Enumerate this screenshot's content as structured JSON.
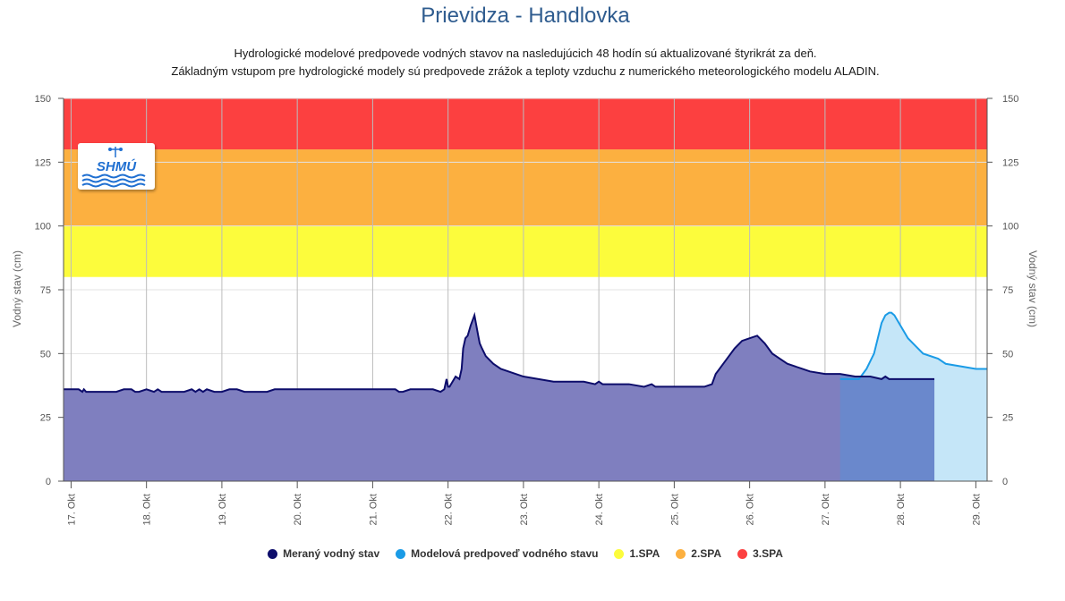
{
  "title": "Prievidza - Handlovka",
  "subtitle_lines": [
    "Hydrologické modelové predpovede vodných stavov na nasledujúcich 48 hodín sú aktualizované štyrikrát za deň.",
    "Základným vstupom pre hydrologické modely sú predpovede zrážok a teploty vzduchu z numerického meteorologického modelu ALADIN."
  ],
  "logo_text": "SHMÚ",
  "colors": {
    "measured_line": "#0d0d6b",
    "measured_fill": "#7f7fbf",
    "forecast_line": "#1a9be6",
    "forecast_fill": "#c5e6f8",
    "overlap_fill": "#6a88cc",
    "spa1": "#fcfc3c",
    "spa2": "#fcb040",
    "spa3": "#fc4040",
    "title": "#2f5c8f"
  },
  "legend": [
    {
      "label": "Meraný vodný stav",
      "color": "#0d0d6b"
    },
    {
      "label": "Modelová predpoveď vodného stavu",
      "color": "#1a9be6"
    },
    {
      "label": "1.SPA",
      "color": "#fcfc3c"
    },
    {
      "label": "2.SPA",
      "color": "#fcb040"
    },
    {
      "label": "3.SPA",
      "color": "#fc4040"
    }
  ],
  "chart_data": {
    "type": "area",
    "title": "Prievidza - Handlovka",
    "ylabel": "Vodný stav (cm)",
    "ylabel_right": "Vodný stav (cm)",
    "xlabel": "",
    "ylim": [
      0,
      150
    ],
    "yticks": [
      0,
      25,
      50,
      75,
      100,
      125,
      150
    ],
    "xlim": [
      -0.1,
      12.15
    ],
    "x_unit": "days since 17. Okt",
    "xtick_labels": [
      "17. Okt",
      "18. Okt",
      "19. Okt",
      "20. Okt",
      "21. Okt",
      "22. Okt",
      "23. Okt",
      "24. Okt",
      "25. Okt",
      "26. Okt",
      "27. Okt",
      "28. Okt",
      "29. Okt"
    ],
    "bands": [
      {
        "name": "1.SPA",
        "from": 80,
        "to": 100
      },
      {
        "name": "2.SPA",
        "from": 100,
        "to": 130
      },
      {
        "name": "3.SPA",
        "from": 130,
        "to": 150
      }
    ],
    "grid": true,
    "legend_position": "bottom",
    "series": [
      {
        "name": "Meraný vodný stav",
        "x": [
          -0.1,
          0.0,
          0.1,
          0.15,
          0.17,
          0.2,
          0.3,
          0.6,
          0.7,
          0.8,
          0.85,
          0.9,
          1.0,
          1.1,
          1.15,
          1.2,
          1.3,
          1.5,
          1.6,
          1.65,
          1.7,
          1.75,
          1.8,
          1.9,
          2.0,
          2.1,
          2.2,
          2.3,
          2.5,
          2.6,
          2.7,
          2.8,
          3.0,
          3.5,
          4.0,
          4.2,
          4.3,
          4.35,
          4.4,
          4.5,
          4.65,
          4.7,
          4.8,
          4.9,
          4.95,
          4.98,
          5.0,
          5.02,
          5.1,
          5.15,
          5.18,
          5.2,
          5.23,
          5.26,
          5.3,
          5.35,
          5.4,
          5.42,
          5.45,
          5.5,
          5.6,
          5.7,
          5.8,
          5.9,
          6.0,
          6.2,
          6.4,
          6.6,
          6.8,
          6.95,
          7.0,
          7.05,
          7.2,
          7.4,
          7.6,
          7.7,
          7.75,
          7.8,
          8.0,
          8.4,
          8.5,
          8.55,
          8.6,
          8.7,
          8.8,
          8.9,
          9.0,
          9.1,
          9.2,
          9.3,
          9.35,
          9.4,
          9.5,
          9.6,
          9.7,
          9.8,
          10.0,
          10.2,
          10.4,
          10.6,
          10.75,
          10.8,
          10.85,
          10.9,
          11.0,
          11.2,
          11.45
        ],
        "values": [
          36,
          36,
          36,
          35,
          36,
          35,
          35,
          35,
          36,
          36,
          35,
          35,
          36,
          35,
          36,
          35,
          35,
          35,
          36,
          35,
          36,
          35,
          36,
          35,
          35,
          36,
          36,
          35,
          35,
          35,
          36,
          36,
          36,
          36,
          36,
          36,
          36,
          35,
          35,
          36,
          36,
          36,
          36,
          35,
          36,
          40,
          37,
          37,
          41,
          40,
          44,
          52,
          56,
          57,
          61,
          65,
          57,
          54,
          52,
          49,
          46,
          44,
          43,
          42,
          41,
          40,
          39,
          39,
          39,
          38,
          39,
          38,
          38,
          38,
          37,
          38,
          37,
          37,
          37,
          37,
          38,
          42,
          44,
          48,
          52,
          55,
          56,
          57,
          54,
          50,
          49,
          48,
          46,
          45,
          44,
          43,
          42,
          42,
          41,
          41,
          40,
          41,
          40,
          40,
          40,
          40,
          40
        ]
      },
      {
        "name": "Modelová predpoveď vodného stavu",
        "x": [
          10.2,
          10.45,
          10.55,
          10.65,
          10.7,
          10.75,
          10.8,
          10.85,
          10.88,
          10.92,
          11.0,
          11.1,
          11.2,
          11.3,
          11.5,
          11.6,
          11.8,
          12.0,
          12.15
        ],
        "values": [
          40,
          40,
          44,
          50,
          56,
          62,
          65,
          66,
          66,
          65,
          61,
          56,
          53,
          50,
          48,
          46,
          45,
          44,
          44
        ]
      }
    ]
  }
}
